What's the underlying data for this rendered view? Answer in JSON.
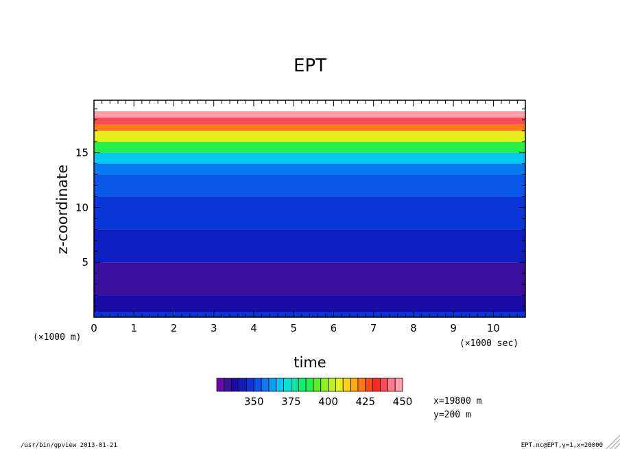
{
  "chart_data": {
    "type": "heatmap",
    "title": "EPT",
    "xlabel": "time",
    "ylabel": "z-coordinate",
    "x_unit": "(×1000 sec)",
    "y_unit": "(×1000 m)",
    "xlim": [
      0,
      10.8
    ],
    "ylim": [
      0,
      19.8
    ],
    "x_ticks": [
      0,
      1,
      2,
      3,
      4,
      5,
      6,
      7,
      8,
      9,
      10
    ],
    "y_ticks": [
      5,
      10,
      15
    ],
    "colorbar": {
      "min": 325,
      "max": 450,
      "step": 5,
      "tick_values": [
        350,
        375,
        400,
        425,
        450
      ],
      "colors": [
        "#6a0aa8",
        "#3a0f9e",
        "#1a0aa6",
        "#0d1fc2",
        "#0a35d8",
        "#0a55ea",
        "#0a78f2",
        "#0a9ef6",
        "#05c8f5",
        "#05e0d8",
        "#05e8a8",
        "#10ee78",
        "#25f048",
        "#5af21e",
        "#8ef21a",
        "#bff21a",
        "#e8ee1a",
        "#ffd21a",
        "#ffaa14",
        "#ff7a14",
        "#ff4a14",
        "#ff2a1e",
        "#ff4a5a",
        "#ff7a8a",
        "#ff9ea6"
      ]
    },
    "levels": [
      {
        "z": 0.5,
        "ept": 345
      },
      {
        "z": 2,
        "ept": 335
      },
      {
        "z": 5,
        "ept": 330
      },
      {
        "z": 8,
        "ept": 340
      },
      {
        "z": 11,
        "ept": 345
      },
      {
        "z": 13,
        "ept": 350
      },
      {
        "z": 14,
        "ept": 355
      },
      {
        "z": 15,
        "ept": 365
      },
      {
        "z": 16,
        "ept": 385
      },
      {
        "z": 17,
        "ept": 405
      },
      {
        "z": 17.6,
        "ept": 420
      },
      {
        "z": 18.2,
        "ept": 435
      },
      {
        "z": 18.8,
        "ept": 450
      }
    ]
  },
  "annotations": {
    "x_info": "x=19800 m",
    "y_info": "y=200 m",
    "footer_left": "/usr/bin/gpview  2013-01-21",
    "footer_right": "EPT.nc@EPT,y=1,x=20000"
  }
}
